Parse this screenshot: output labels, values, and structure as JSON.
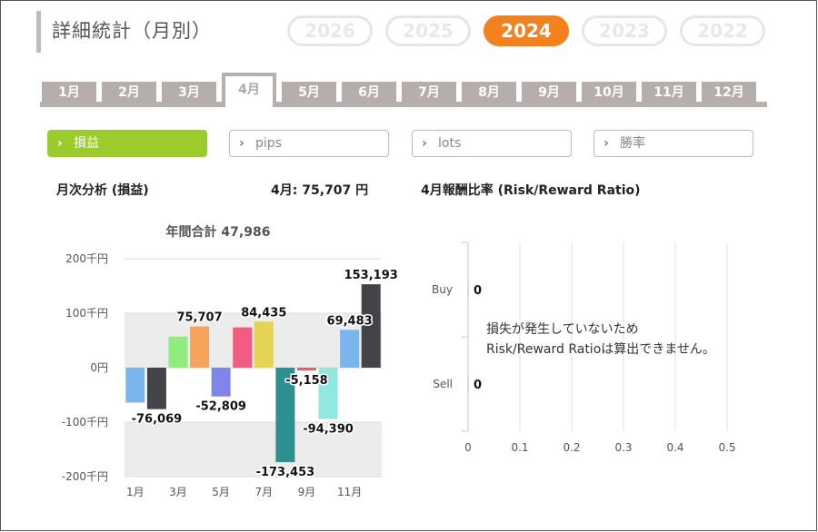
{
  "page_title": "詳細統計（月別）",
  "years": [
    "2026",
    "2025",
    "2024",
    "2023",
    "2022"
  ],
  "active_year": "2024",
  "months": [
    "1月",
    "2月",
    "3月",
    "4月",
    "5月",
    "6月",
    "7月",
    "8月",
    "9月",
    "10月",
    "11月",
    "12月"
  ],
  "active_month": "4月",
  "metric_tabs": [
    "損益",
    "pips",
    "lots",
    "勝率"
  ],
  "active_metric": "損益",
  "colors": {
    "accent_orange": "#f3811e",
    "accent_green": "#9ccb2c",
    "tab_gray": "#b6aeac"
  },
  "monthly_analysis": {
    "heading": "月次分析 (損益)",
    "current_label": "4月:",
    "current_value": "75,707",
    "current_unit": "円",
    "annual_total_label": "年間合計",
    "annual_total_value": "47,986"
  },
  "rr_section": {
    "heading": "4月報酬比率 (Risk/Reward Ratio)",
    "message_line1": "損失が発生していないため",
    "message_line2": "Risk/Reward Ratioは算出できません。"
  },
  "chart_data": [
    {
      "type": "bar",
      "title": "年間合計 47,986",
      "categories": [
        "1月",
        "2月",
        "3月",
        "4月",
        "5月",
        "6月",
        "7月",
        "8月",
        "9月",
        "10月",
        "11月",
        "12月"
      ],
      "x_tick_labels": [
        "1月",
        "3月",
        "5月",
        "7月",
        "9月",
        "11月"
      ],
      "y_tick_labels": [
        "200千円",
        "100千円",
        "0円",
        "-100千円",
        "-200千円"
      ],
      "ylim": [
        -200000,
        200000
      ],
      "series": [
        {
          "values": [
            -64000,
            -76069,
            57000,
            75707,
            -52809,
            74000,
            84435,
            -173453,
            -5158,
            -94390,
            69483,
            153193
          ],
          "colors": [
            "#7cb5ec",
            "#434348",
            "#90ed7d",
            "#f7a35c",
            "#8085e9",
            "#f15c80",
            "#e4d354",
            "#2b908f",
            "#f45b5b",
            "#91e8e1",
            "#7cb5ec",
            "#434348"
          ]
        }
      ],
      "data_labels": [
        {
          "month_index": 1,
          "text": "-76,069"
        },
        {
          "month_index": 3,
          "text": "75,707"
        },
        {
          "month_index": 4,
          "text": "-52,809"
        },
        {
          "month_index": 6,
          "text": "84,435"
        },
        {
          "month_index": 7,
          "text": "-173,453"
        },
        {
          "month_index": 8,
          "text": "-5,158"
        },
        {
          "month_index": 9,
          "text": "-94,390"
        },
        {
          "month_index": 10,
          "text": "69,483"
        },
        {
          "month_index": 11,
          "text": "153,193"
        }
      ],
      "plot_bands": [
        {
          "from": 100000,
          "to": 0
        },
        {
          "from": -100000,
          "to": -200000
        }
      ]
    },
    {
      "type": "bar",
      "orientation": "horizontal",
      "categories": [
        "Buy",
        "Sell"
      ],
      "values": [
        0,
        0
      ],
      "value_labels": [
        "0",
        "0"
      ],
      "xlim": [
        0,
        0.5
      ],
      "x_tick_labels": [
        "0",
        "0.1",
        "0.2",
        "0.3",
        "0.4",
        "0.5"
      ]
    }
  ]
}
